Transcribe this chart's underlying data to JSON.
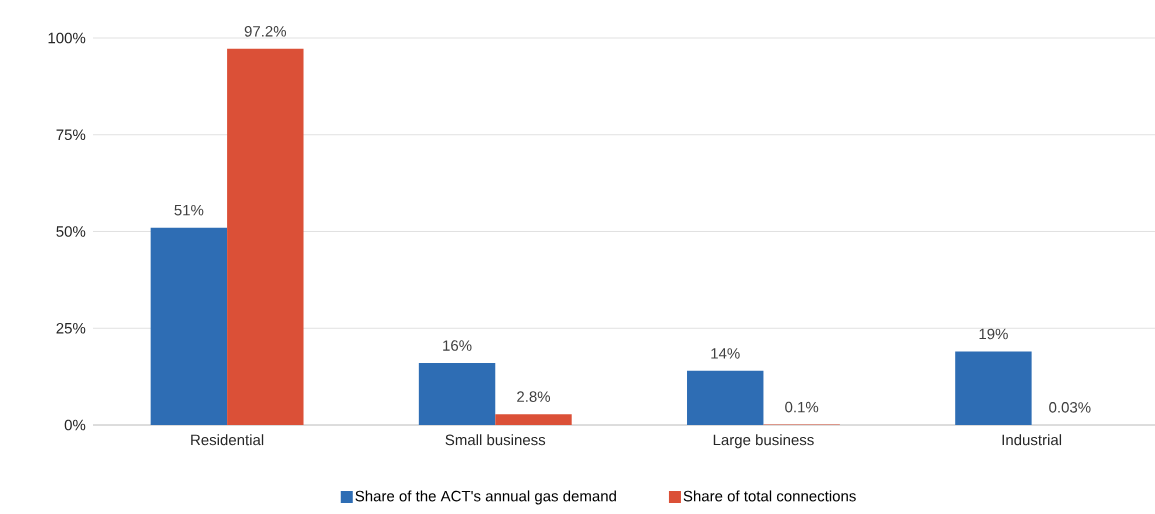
{
  "chart_data": {
    "type": "bar",
    "categories": [
      "Residential",
      "Small business",
      "Large business",
      "Industrial"
    ],
    "series": [
      {
        "name": "Share of the ACT's annual gas demand",
        "color": "#2e6db4",
        "values": [
          51,
          16,
          14,
          19
        ],
        "value_labels": [
          "51%",
          "16%",
          "14%",
          "19%"
        ]
      },
      {
        "name": "Share of total connections",
        "color": "#db5037",
        "values": [
          97.2,
          2.8,
          0.1,
          0.03
        ],
        "value_labels": [
          "97.2%",
          "2.8%",
          "0.1%",
          "0.03%"
        ]
      }
    ],
    "ylim": [
      0,
      100
    ],
    "yticks": [
      {
        "value": 0,
        "label": "0%"
      },
      {
        "value": 25,
        "label": "25%"
      },
      {
        "value": 50,
        "label": "50%"
      },
      {
        "value": 75,
        "label": "75%"
      },
      {
        "value": 100,
        "label": "100%"
      }
    ],
    "grid": "y",
    "legend": "bottom"
  }
}
